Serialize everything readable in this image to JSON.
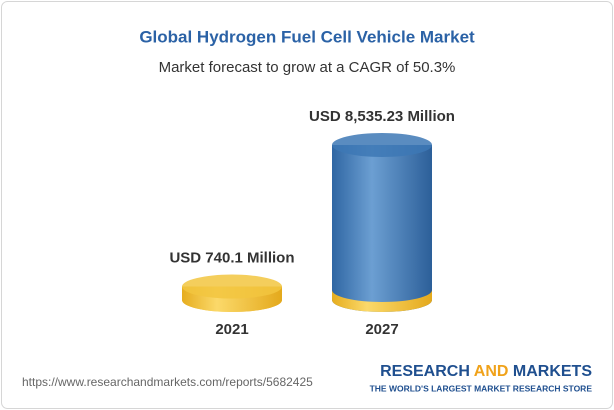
{
  "chart_data": {
    "type": "cylinder-bar",
    "title": "Global Hydrogen Fuel Cell Vehicle Market",
    "subtitle": "Market forecast to grow at a CAGR of 50.3%",
    "categories": [
      "2021",
      "2027"
    ],
    "values": [
      740.1,
      8535.23
    ],
    "value_labels": [
      "USD 740.1 Million",
      "USD 8,535.23 Million"
    ],
    "colors": [
      "#f2c53f",
      "#3d78b5"
    ],
    "base_color": "#f2c53f"
  },
  "footer": {
    "url": "https://www.researchandmarkets.com/reports/5682425",
    "brand": [
      "RESEARCH",
      "AND",
      "MARKETS"
    ],
    "tagline": "THE WORLD'S LARGEST MARKET RESEARCH STORE"
  }
}
